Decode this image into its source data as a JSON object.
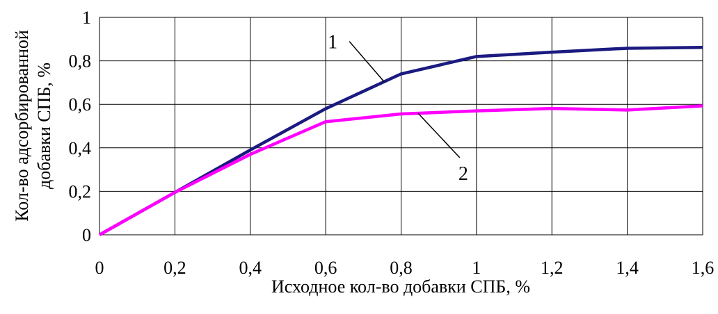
{
  "chart_data": {
    "type": "line",
    "title": "",
    "xlabel": "Исходное кол-во добавки СПБ, %",
    "ylabel_lines": [
      "Кол-во адсорбированной",
      "добавки СПБ, %"
    ],
    "xlim": [
      0,
      1.6
    ],
    "ylim": [
      0,
      1
    ],
    "x_tick_labels": [
      "0",
      "0,2",
      "0,4",
      "0,6",
      "0,8",
      "1",
      "1,2",
      "1,4",
      "1,6"
    ],
    "y_tick_labels": [
      "0",
      "0,2",
      "0,4",
      "0,6",
      "0,8",
      "1"
    ],
    "grid": true,
    "legend": "none",
    "series": [
      {
        "name": "1",
        "color": "#1a1a80",
        "x": [
          0,
          0.2,
          0.4,
          0.6,
          0.8,
          1.0,
          1.2,
          1.4,
          1.6
        ],
        "values": [
          0,
          0.195,
          0.39,
          0.58,
          0.74,
          0.82,
          0.84,
          0.858,
          0.862
        ]
      },
      {
        "name": "2",
        "color": "#ff00ff",
        "x": [
          0,
          0.2,
          0.4,
          0.6,
          0.8,
          1.0,
          1.2,
          1.4,
          1.6
        ],
        "values": [
          0,
          0.195,
          0.37,
          0.52,
          0.556,
          0.57,
          0.581,
          0.574,
          0.593
        ]
      }
    ],
    "annotations": [
      {
        "text": "1",
        "series": 0,
        "at_x": 0.755
      },
      {
        "text": "2",
        "series": 1,
        "at_x": 0.845
      }
    ]
  }
}
